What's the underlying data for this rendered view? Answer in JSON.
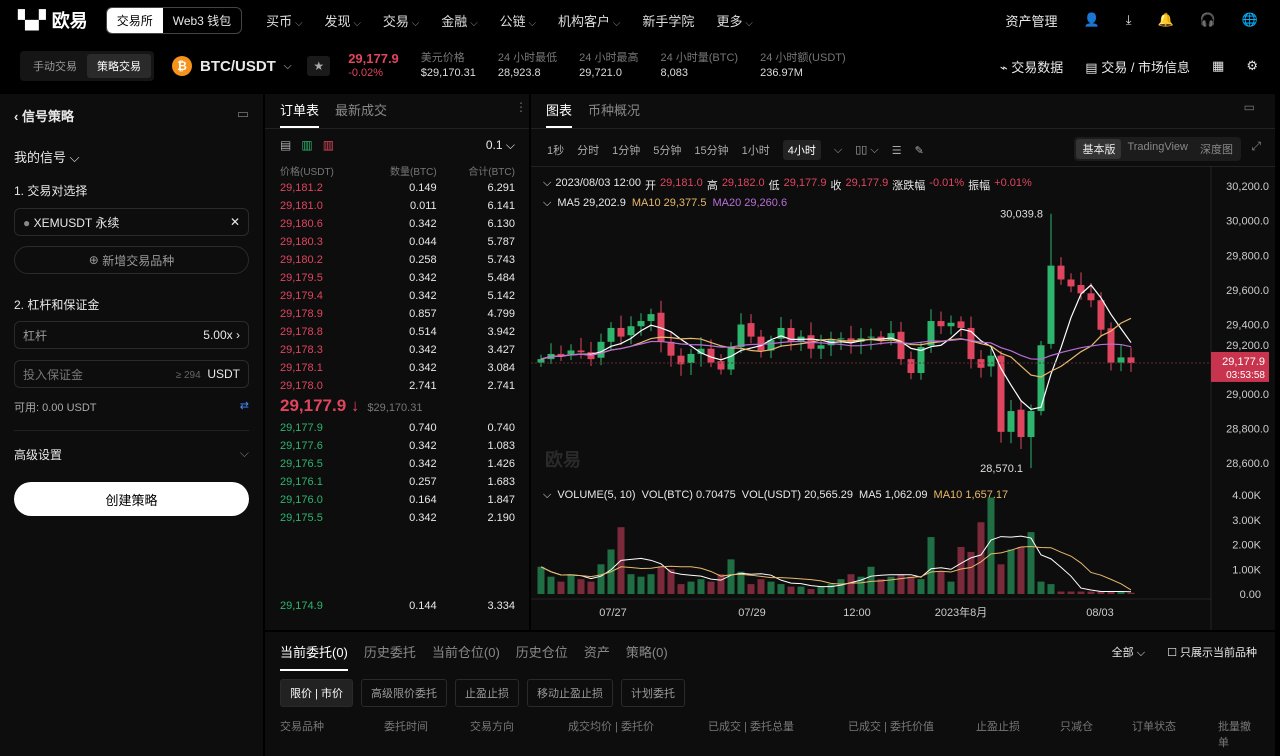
{
  "topnav": {
    "brand": "欧易",
    "seg": [
      "交易所",
      "Web3 钱包"
    ],
    "items": [
      "买币",
      "发现",
      "交易",
      "金融",
      "公链",
      "机构客户",
      "新手学院",
      "更多"
    ],
    "assets": "资产管理"
  },
  "subheader": {
    "modes": [
      "手动交易",
      "策略交易"
    ],
    "pair": "BTC/USDT",
    "price": "29,177.9",
    "change": "-0.02%",
    "stats": [
      {
        "label": "美元价格",
        "value": "$29,170.31"
      },
      {
        "label": "24 小时最低",
        "value": "28,923.8"
      },
      {
        "label": "24 小时最高",
        "value": "29,721.0"
      },
      {
        "label": "24 小时量(BTC)",
        "value": "8,083"
      },
      {
        "label": "24 小时额(USDT)",
        "value": "236.97M"
      }
    ],
    "right": [
      "交易数据",
      "交易 / 市场信息"
    ]
  },
  "left": {
    "title": "信号策略",
    "my_signal": "我的信号",
    "s1": "1. 交易对选择",
    "pair_value": "XEMUSDT 永续",
    "add_pair": "新增交易品种",
    "s2": "2. 杠杆和保证金",
    "leverage_label": "杠杆",
    "leverage_value": "5.00x",
    "margin_placeholder": "投入保证金",
    "margin_hint": "≥ 294",
    "margin_unit": "USDT",
    "available": "可用: 0.00 USDT",
    "advanced": "高级设置",
    "create": "创建策略"
  },
  "orderbook": {
    "tabs": [
      "订单表",
      "最新成交"
    ],
    "precision": "0.1",
    "headers": [
      "价格(USDT)",
      "数量(BTC)",
      "合计(BTC)"
    ],
    "asks": [
      [
        "29,181.2",
        "0.149",
        "6.291"
      ],
      [
        "29,181.0",
        "0.011",
        "6.141"
      ],
      [
        "29,180.6",
        "0.342",
        "6.130"
      ],
      [
        "29,180.3",
        "0.044",
        "5.787"
      ],
      [
        "29,180.2",
        "0.258",
        "5.743"
      ],
      [
        "29,179.5",
        "0.342",
        "5.484"
      ],
      [
        "29,179.4",
        "0.342",
        "5.142"
      ],
      [
        "29,178.9",
        "0.857",
        "4.799"
      ],
      [
        "29,178.8",
        "0.514",
        "3.942"
      ],
      [
        "29,178.3",
        "0.342",
        "3.427"
      ],
      [
        "29,178.1",
        "0.342",
        "3.084"
      ],
      [
        "29,178.0",
        "2.741",
        "2.741"
      ]
    ],
    "last": "29,177.9 ↓",
    "last_usd": "$29,170.31",
    "bids": [
      [
        "29,177.9",
        "0.740",
        "0.740"
      ],
      [
        "29,177.6",
        "0.342",
        "1.083"
      ],
      [
        "29,176.5",
        "0.342",
        "1.426"
      ],
      [
        "29,176.1",
        "0.257",
        "1.683"
      ],
      [
        "29,176.0",
        "0.164",
        "1.847"
      ],
      [
        "29,175.5",
        "0.342",
        "2.190"
      ]
    ],
    "bottom": [
      "29,174.9",
      "0.144",
      "3.334"
    ]
  },
  "chart": {
    "tabs": [
      "图表",
      "币种概况"
    ],
    "intervals": [
      "1秒",
      "分时",
      "1分钟",
      "5分钟",
      "15分钟",
      "1小时",
      "4小时"
    ],
    "versions": [
      "基本版",
      "TradingView",
      "深度图"
    ],
    "ohlc": {
      "time": "2023/08/03 12:00",
      "o_l": "开",
      "o": "29,181.0",
      "h_l": "高",
      "h": "29,182.0",
      "l_l": "低",
      "l": "29,177.9",
      "c_l": "收",
      "c": "29,177.9",
      "chg_l": "涨跌幅",
      "chg": "-0.01%",
      "amp_l": "振幅",
      "amp": "+0.01%"
    },
    "ma": {
      "ma5": "MA5 29,202.9",
      "ma10": "MA10 29,377.5",
      "ma20": "MA20 29,260.6"
    },
    "vol": {
      "t": "VOLUME(5, 10)",
      "btc": "VOL(BTC) 0.70475",
      "usdt": "VOL(USDT) 20,565.29",
      "ma5": "MA5 1,062.09",
      "ma10": "MA10 1,657.17"
    },
    "price_ticks": [
      "30,200.0",
      "30,000.0",
      "29,800.0",
      "29,600.0",
      "29,400.0",
      "29,200.0",
      "29,000.0",
      "28,800.0",
      "28,600.0"
    ],
    "vol_ticks": [
      "4.00K",
      "3.00K",
      "2.00K",
      "1.00K",
      "0.00"
    ],
    "x_ticks": [
      "07/27",
      "07/29",
      "12:00",
      "2023年8月",
      "08/03"
    ],
    "current_price": "29,177.9",
    "countdown": "03:53:58",
    "high_label": "30,039.8",
    "low_label": "28,570.1",
    "watermark": "欧易",
    "colors": {
      "up": "#2fb46e",
      "down": "#e0455f",
      "ma5": "#ffffff",
      "ma10": "#e8b86d",
      "ma20": "#b86fd6"
    }
  },
  "chart_data": {
    "type": "candlestick",
    "ylim": [
      28550,
      30250
    ],
    "close": [
      29200,
      29230,
      29220,
      29250,
      29240,
      29200,
      29300,
      29380,
      29330,
      29390,
      29420,
      29460,
      29300,
      29220,
      29170,
      29230,
      29260,
      29180,
      29140,
      29270,
      29400,
      29330,
      29250,
      29310,
      29380,
      29300,
      29330,
      29260,
      29280,
      29310,
      29320,
      29300,
      29320,
      29330,
      29310,
      29350,
      29200,
      29120,
      29270,
      29420,
      29390,
      29410,
      29380,
      29200,
      29150,
      29220,
      28780,
      28900,
      28750,
      28900,
      29280,
      29740,
      29660,
      29620,
      29580,
      29540,
      29370,
      29180,
      29210,
      29178
    ],
    "volume": [
      1100,
      700,
      500,
      800,
      600,
      500,
      1200,
      1800,
      2700,
      800,
      700,
      800,
      1100,
      1000,
      400,
      500,
      600,
      500,
      800,
      1400,
      900,
      400,
      600,
      500,
      400,
      300,
      300,
      200,
      300,
      400,
      600,
      800,
      700,
      1100,
      600,
      700,
      800,
      700,
      600,
      2300,
      900,
      500,
      1900,
      1700,
      2900,
      3900,
      1200,
      1800,
      1900,
      2500,
      500,
      400,
      100,
      100,
      100,
      100,
      100,
      100,
      100,
      50
    ]
  },
  "bottom": {
    "tabs": [
      "当前委托(0)",
      "历史委托",
      "当前仓位(0)",
      "历史仓位",
      "资产",
      "策略(0)"
    ],
    "filter": "全部",
    "only_current": "只展示当前品种",
    "buttons": [
      "限价 | 市价",
      "高级限价委托",
      "止盈止损",
      "移动止盈止损",
      "计划委托"
    ],
    "columns": [
      "交易品种",
      "委托时间",
      "交易方向",
      "成交均价 | 委托价",
      "已成交 | 委托总量",
      "已成交 | 委托价值",
      "止盈止损",
      "只减仓",
      "订单状态",
      "批量撤单"
    ]
  }
}
